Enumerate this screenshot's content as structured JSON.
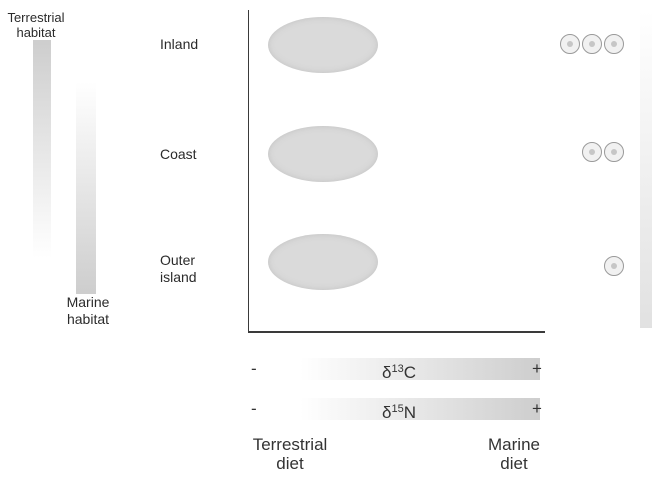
{
  "habitat": {
    "terrestrial_line1": "Terrestrial",
    "terrestrial_line2": "habitat",
    "marine_line1": "Marine",
    "marine_line2": "habitat"
  },
  "rows": [
    {
      "label_line1": "Inland",
      "label_line2": "",
      "marine_circles": 3
    },
    {
      "label_line1": "Coast",
      "label_line2": "",
      "marine_circles": 2
    },
    {
      "label_line1": "Outer",
      "label_line2": "island",
      "marine_circles": 1
    }
  ],
  "isotopes": {
    "carbon": {
      "minus": "-",
      "mass": "13",
      "element": "C",
      "plus": "+"
    },
    "nitrogen": {
      "minus": "-",
      "mass": "15",
      "element": "N",
      "plus": "+"
    }
  },
  "diet": {
    "terrestrial_line1": "Terrestrial",
    "terrestrial_line2": "diet",
    "marine_line1": "Marine",
    "marine_line2": "diet"
  },
  "colors": {
    "oval_fill": "#dadada",
    "axis": "#3a3a3a",
    "gradient": "#c8c8c8"
  }
}
